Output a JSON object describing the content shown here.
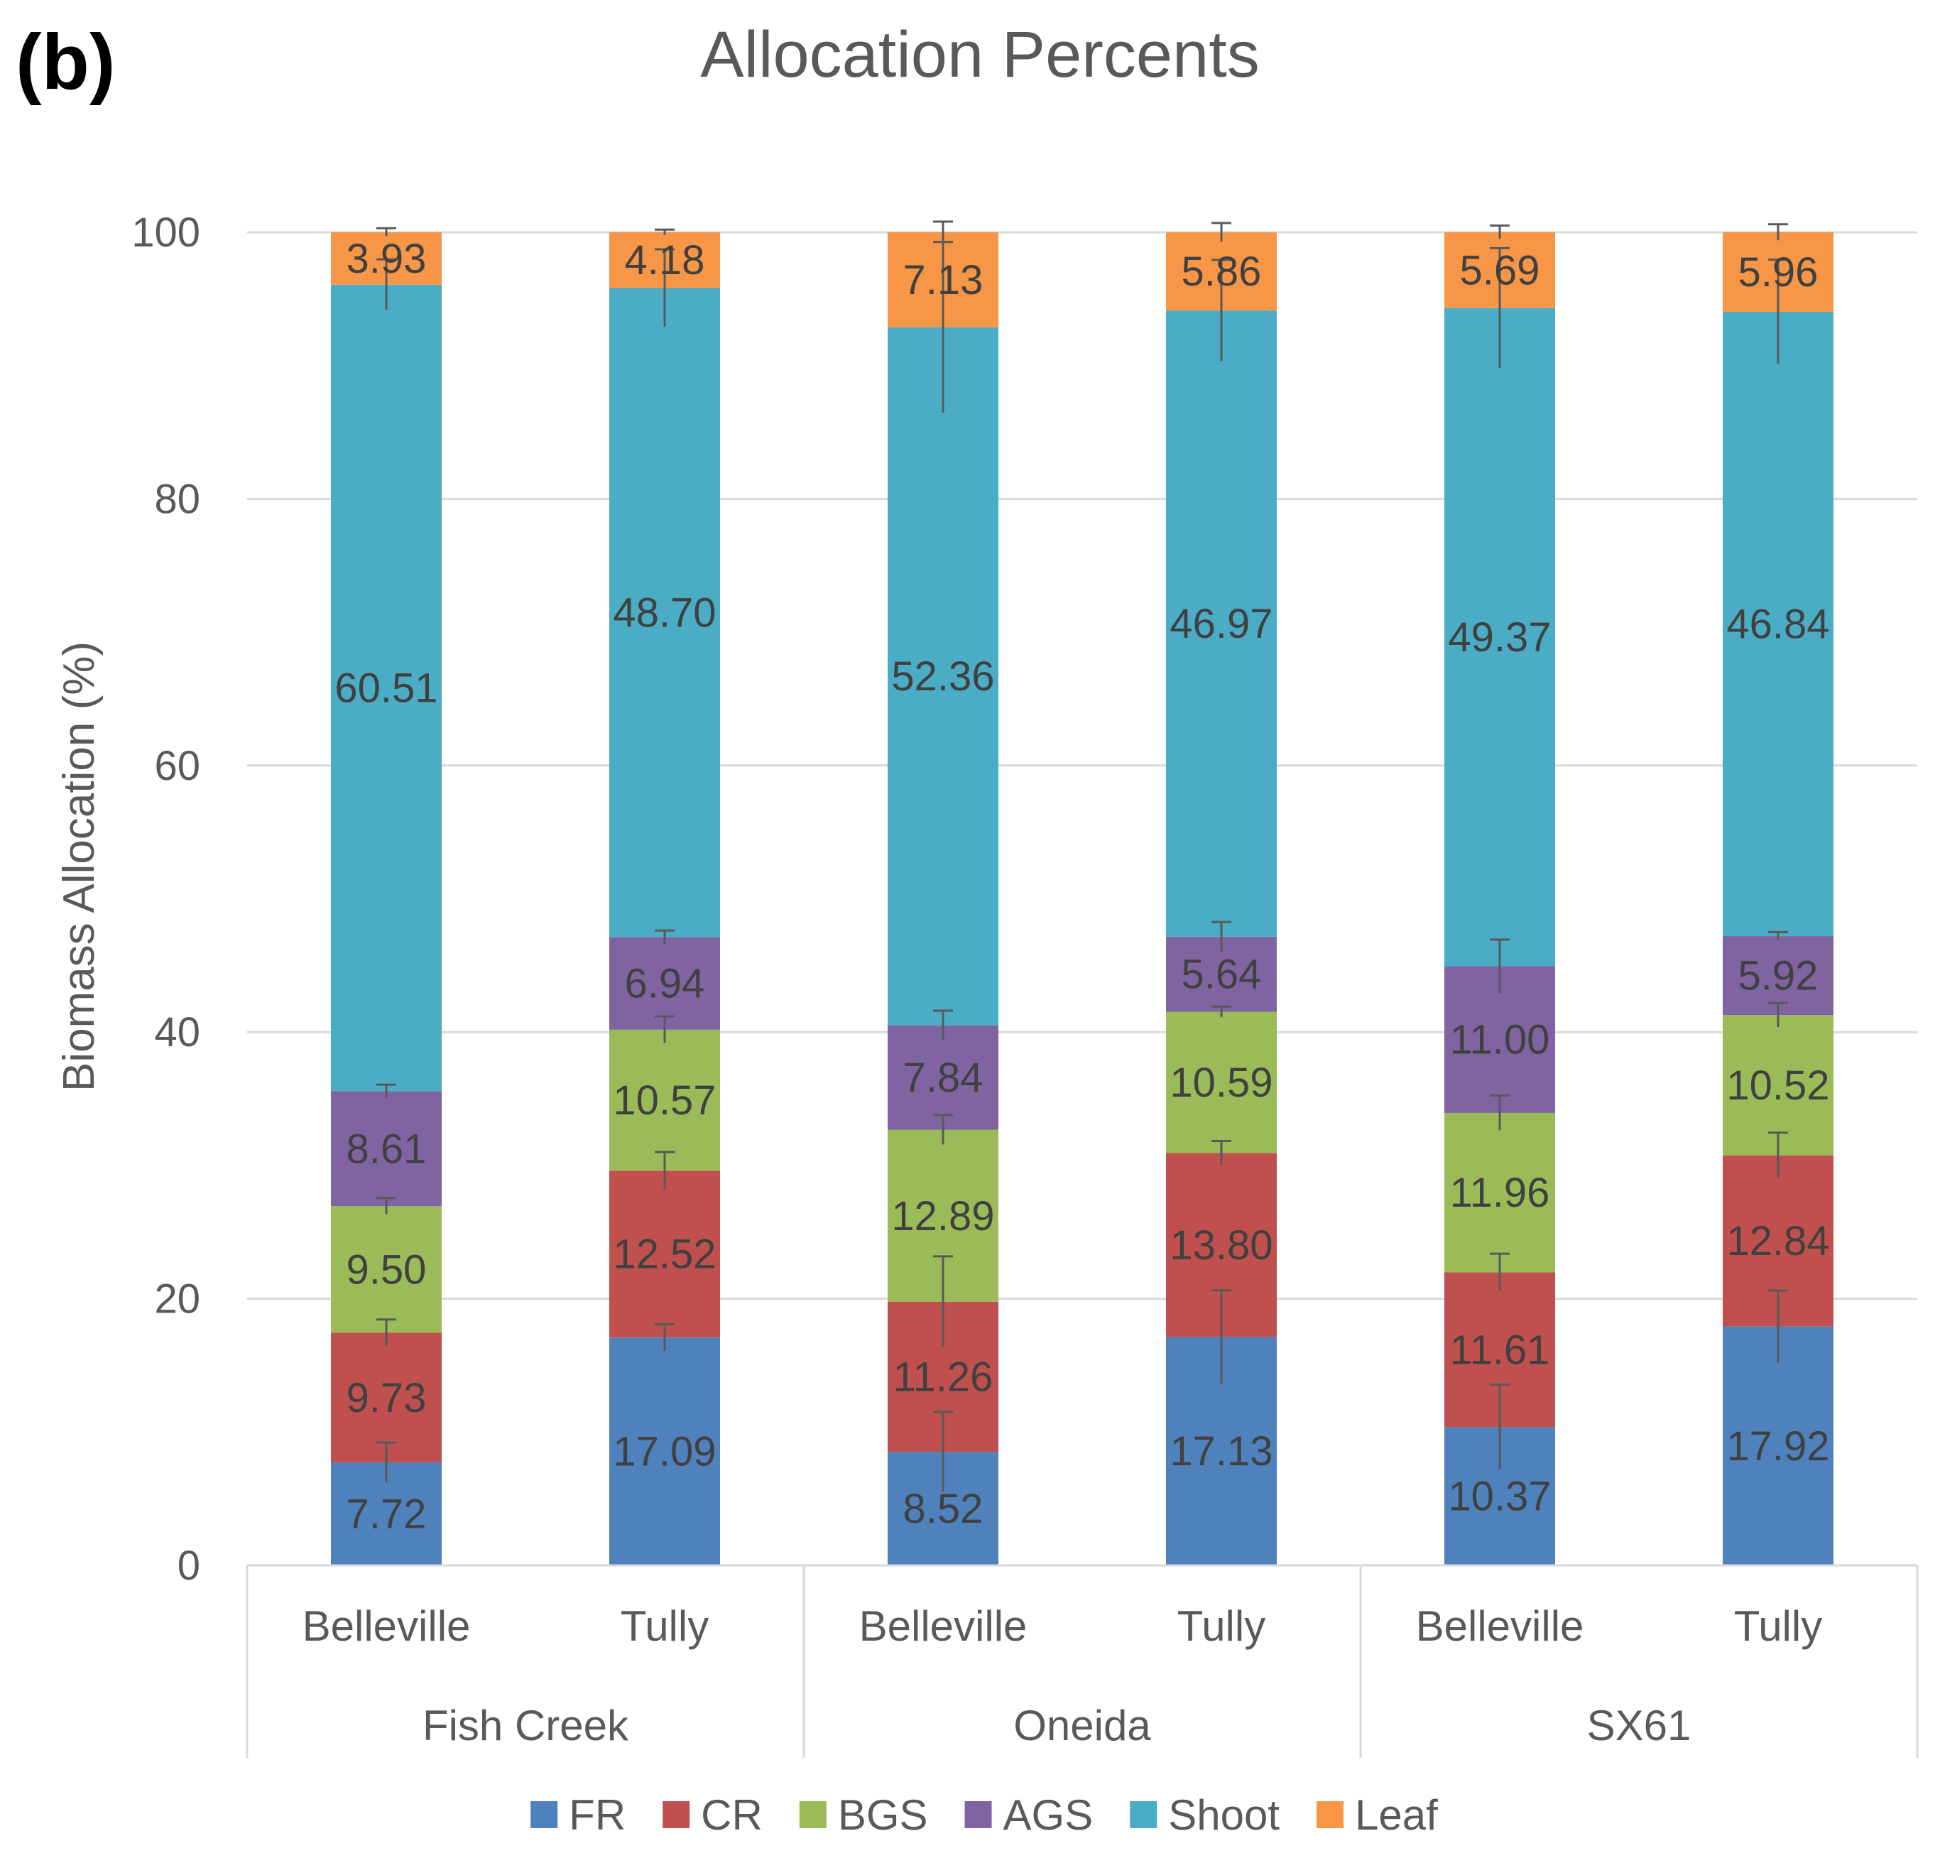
{
  "panel_label": "(b)",
  "chart_data": {
    "type": "bar",
    "stacked": true,
    "title": "Allocation Percents",
    "xlabel": "",
    "ylabel": "Biomass Allocation (%)",
    "ylim": [
      0,
      100
    ],
    "yticks": [
      0,
      20,
      40,
      60,
      80,
      100
    ],
    "grid": true,
    "legend_position": "bottom",
    "groups": [
      {
        "name": "Fish Creek",
        "categories": [
          "Belleville",
          "Tully"
        ]
      },
      {
        "name": "Oneida",
        "categories": [
          "Belleville",
          "Tully"
        ]
      },
      {
        "name": "SX61",
        "categories": [
          "Belleville",
          "Tully"
        ]
      }
    ],
    "series": [
      {
        "name": "FR",
        "color": "#4F81BD",
        "values": [
          7.72,
          17.09,
          8.52,
          17.13,
          10.37,
          17.92
        ],
        "labels": [
          "7.72",
          "17.09",
          "8.52",
          "17.13",
          "10.37",
          "17.92"
        ],
        "error": [
          1.5,
          1.0,
          3.0,
          3.5,
          3.2,
          2.7
        ]
      },
      {
        "name": "CR",
        "color": "#C0504D",
        "values": [
          9.73,
          12.52,
          11.26,
          13.8,
          11.61,
          12.84
        ],
        "labels": [
          "9.73",
          "12.52",
          "11.26",
          "13.80",
          "11.61",
          "12.84"
        ],
        "error": [
          1.0,
          1.4,
          3.4,
          0.9,
          1.4,
          1.7
        ]
      },
      {
        "name": "BGS",
        "color": "#9BBB59",
        "values": [
          9.5,
          10.57,
          12.89,
          10.59,
          11.96,
          10.52
        ],
        "labels": [
          "9.50",
          "10.57",
          "12.89",
          "10.59",
          "11.96",
          "10.52"
        ],
        "error": [
          0.6,
          1.0,
          1.1,
          0.4,
          1.3,
          0.9
        ]
      },
      {
        "name": "AGS",
        "color": "#8064A2",
        "values": [
          8.61,
          6.94,
          7.84,
          5.64,
          11.0,
          5.92
        ],
        "labels": [
          "8.61",
          "6.94",
          "7.84",
          "5.64",
          "11.00",
          "5.92"
        ],
        "error": [
          0.5,
          0.5,
          1.1,
          1.1,
          2.0,
          0.3
        ]
      },
      {
        "name": "Shoot",
        "color": "#4BACC6",
        "values": [
          60.51,
          48.7,
          52.36,
          46.97,
          49.37,
          46.84
        ],
        "labels": [
          "60.51",
          "48.70",
          "52.36",
          "46.97",
          "49.37",
          "46.84"
        ],
        "error": [
          1.9,
          2.9,
          6.4,
          3.8,
          4.5,
          3.9
        ]
      },
      {
        "name": "Leaf",
        "color": "#F79646",
        "values": [
          3.93,
          4.18,
          7.13,
          5.86,
          5.69,
          5.96
        ],
        "labels": [
          "3.93",
          "4.18",
          "7.13",
          "5.86",
          "5.69",
          "5.96"
        ],
        "error": [
          0.3,
          0.2,
          0.8,
          0.7,
          0.5,
          0.6
        ]
      }
    ]
  }
}
